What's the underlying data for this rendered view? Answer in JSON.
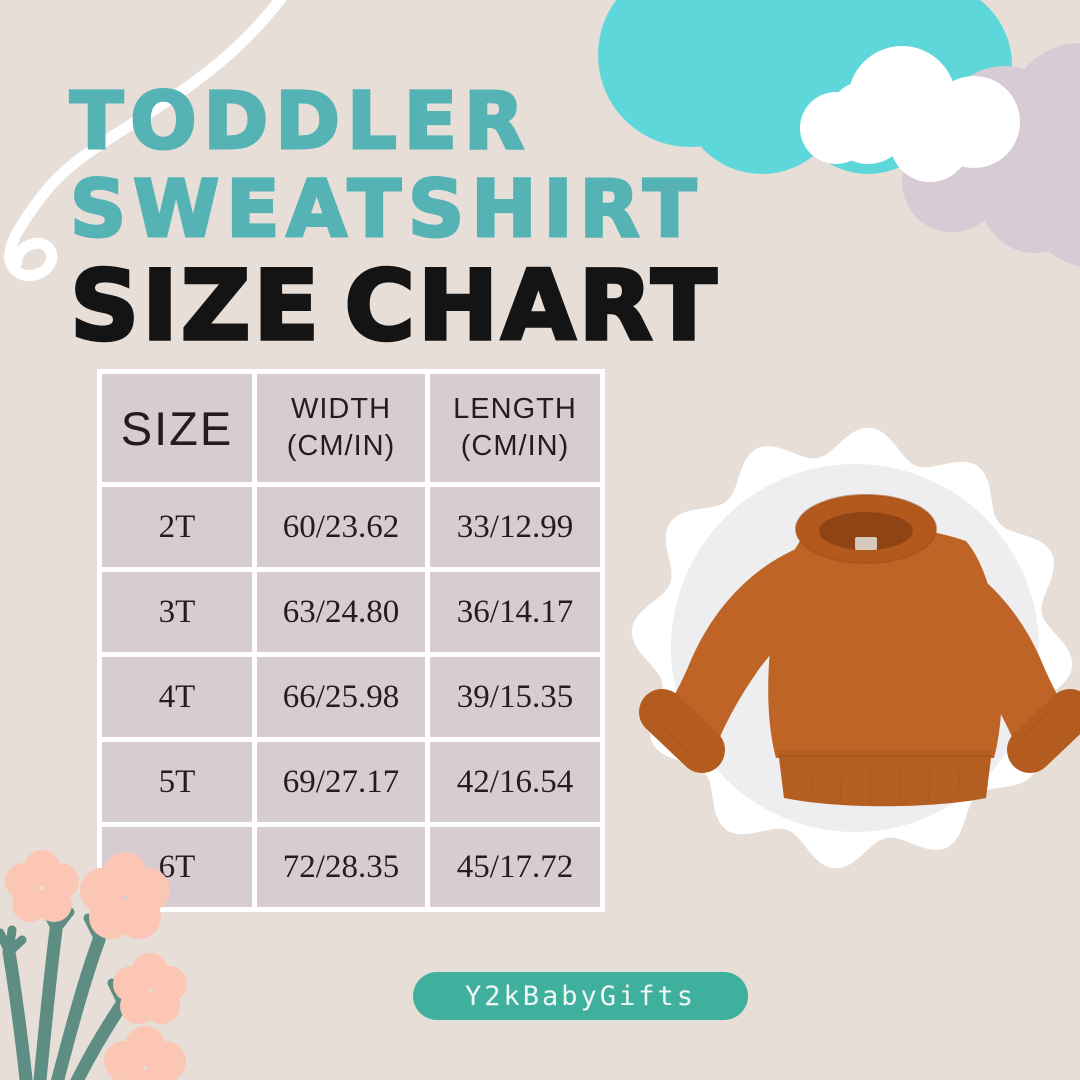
{
  "title": {
    "line1": "TODDLER",
    "line2": "SWEATSHIRT",
    "line3": "SIZE CHART",
    "accent_color": "#55b3b5",
    "dark_color": "#141414"
  },
  "table": {
    "header": {
      "size": "SIZE",
      "width_line1": "WIDTH",
      "width_line2": "(CM/IN)",
      "length_line1": "LENGTH",
      "length_line2": "(CM/IN)"
    },
    "rows": [
      {
        "size": "2T",
        "width": "60/23.62",
        "length": "33/12.99"
      },
      {
        "size": "3T",
        "width": "63/24.80",
        "length": "36/14.17"
      },
      {
        "size": "4T",
        "width": "66/25.98",
        "length": "39/15.35"
      },
      {
        "size": "5T",
        "width": "69/27.17",
        "length": "42/16.54"
      },
      {
        "size": "6T",
        "width": "72/28.35",
        "length": "45/17.72"
      }
    ],
    "cell_background": "#d8ccd3",
    "grid_background": "#ffffff"
  },
  "badge": {
    "label": "Y2kBabyGifts",
    "background": "#3fb09d"
  },
  "decorations": {
    "cloud_teal": "#5dd7d9",
    "cloud_purple": "#d7cbd5",
    "cloud_white": "#ffffff",
    "squiggle": "#ffffff",
    "flower_petal": "#fbc6b3",
    "flower_stem": "#5e8e83",
    "photo_circle_bg": "#eeedf0",
    "sweatshirt_color": "#bd6426",
    "background": "#e7dfd7"
  },
  "chart_data": {
    "type": "table",
    "title": "Toddler Sweatshirt Size Chart",
    "columns": [
      "SIZE",
      "WIDTH (CM/IN)",
      "LENGTH (CM/IN)"
    ],
    "rows": [
      [
        "2T",
        "60/23.62",
        "33/12.99"
      ],
      [
        "3T",
        "63/24.80",
        "36/14.17"
      ],
      [
        "4T",
        "66/25.98",
        "39/15.35"
      ],
      [
        "5T",
        "69/27.17",
        "42/16.54"
      ],
      [
        "6T",
        "72/28.35",
        "45/17.72"
      ]
    ]
  }
}
